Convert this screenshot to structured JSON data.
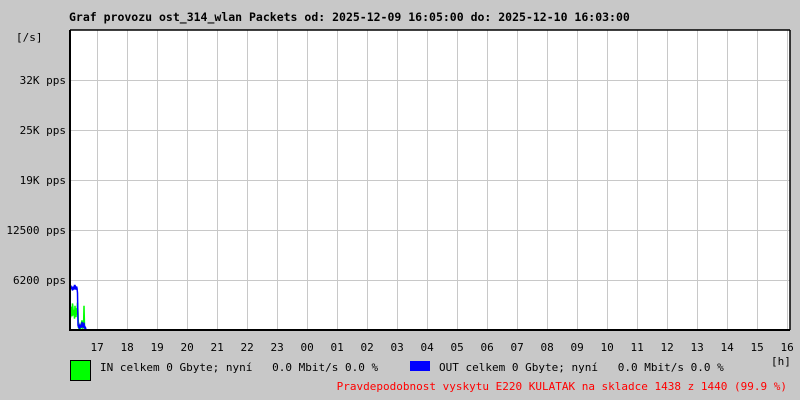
{
  "chart_data": {
    "type": "line",
    "title": "Graf provozu ost_314_wlan Packets od: 2025-12-09 16:05:00 do: 2025-12-10 16:03:00",
    "ylabel": "[/s]",
    "xlabel": "[h]",
    "ylim": [
      0,
      37200
    ],
    "yticks": [
      {
        "value": 6200,
        "label": "6200 pps"
      },
      {
        "value": 12500,
        "label": "12500 pps"
      },
      {
        "value": 19000,
        "label": "19K pps"
      },
      {
        "value": 25000,
        "label": "25K pps"
      },
      {
        "value": 32000,
        "label": "32K pps"
      }
    ],
    "xticks": [
      "17",
      "18",
      "19",
      "20",
      "21",
      "22",
      "23",
      "00",
      "01",
      "02",
      "03",
      "04",
      "05",
      "06",
      "07",
      "08",
      "09",
      "10",
      "11",
      "12",
      "13",
      "14",
      "15",
      "16"
    ],
    "x_start_minutes_from_16h": 5,
    "grid": true,
    "series": [
      {
        "key": "in",
        "color": "#00ff00",
        "x_minutes": [
          5,
          6,
          7,
          8,
          9,
          10,
          11,
          12,
          13,
          14,
          15,
          16,
          17,
          18,
          19,
          20,
          21,
          22,
          23,
          24,
          25,
          26,
          27,
          28,
          29,
          30,
          31,
          32,
          33,
          34,
          35,
          36,
          37,
          38,
          39
        ],
        "values": [
          3200,
          1500,
          2900,
          2300,
          1700,
          3300,
          2600,
          1800,
          2500,
          1400,
          3000,
          2000,
          1600,
          2700,
          1900,
          3400,
          2100,
          300,
          200,
          600,
          400,
          200,
          300,
          900,
          1200,
          300,
          400,
          200,
          3000,
          500,
          300,
          200,
          0,
          0,
          0
        ]
      },
      {
        "key": "out",
        "color": "#0000ff",
        "x_minutes": [
          5,
          6,
          7,
          8,
          9,
          10,
          11,
          12,
          13,
          14,
          15,
          16,
          17,
          18,
          19,
          20,
          21,
          22,
          23,
          24,
          25,
          26,
          27,
          28,
          29,
          30,
          31,
          32,
          33,
          34,
          35,
          36,
          37,
          38,
          39
        ],
        "values": [
          5300,
          5000,
          5500,
          5100,
          5300,
          4900,
          5400,
          5200,
          5000,
          5600,
          5100,
          5300,
          5000,
          5400,
          5200,
          4600,
          600,
          400,
          500,
          300,
          600,
          400,
          500,
          300,
          1000,
          500,
          400,
          600,
          900,
          300,
          400,
          300,
          0,
          0,
          0
        ]
      }
    ]
  },
  "legend": {
    "in": {
      "label": "IN celkem 0 Gbyte; nyní   0.0 Mbit/s 0.0 %",
      "color": "#00ff00"
    },
    "out": {
      "label": "OUT celkem 0 Gbyte; nyní   0.0 Mbit/s 0.0 %",
      "color": "#0000ff"
    }
  },
  "footer": "Pravdepodobnost vyskytu E220 KULATAK na skladce 1438 z 1440 (99.9 %)",
  "footer_color": "#ff0000"
}
